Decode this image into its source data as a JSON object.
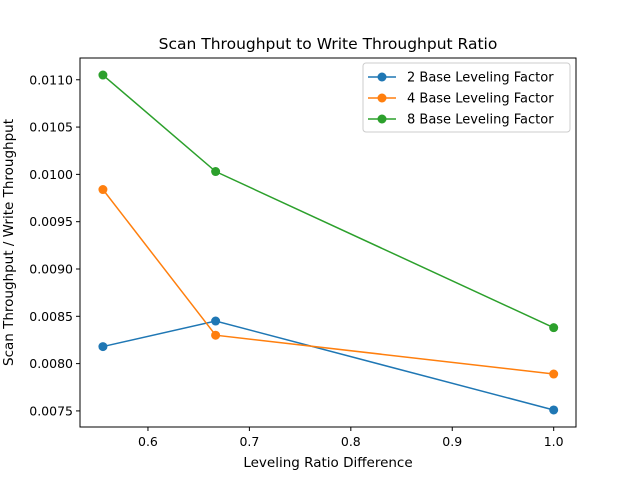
{
  "chart_data": {
    "type": "line",
    "title": "Scan Throughput to Write Throughput Ratio",
    "xlabel": "Leveling Ratio Difference",
    "ylabel": "Scan Throughput / Write Throughput",
    "xlim": [
      0.533,
      1.022
    ],
    "ylim": [
      0.00733,
      0.01123
    ],
    "xticks": [
      0.6,
      0.7,
      0.8,
      0.9,
      1.0
    ],
    "xtick_labels": [
      "0.6",
      "0.7",
      "0.8",
      "0.9",
      "1.0"
    ],
    "yticks": [
      0.0075,
      0.008,
      0.0085,
      0.009,
      0.0095,
      0.01,
      0.0105,
      0.011
    ],
    "ytick_labels": [
      "0.0075",
      "0.0080",
      "0.0085",
      "0.0090",
      "0.0095",
      "0.0100",
      "0.0105",
      "0.0110"
    ],
    "grid": false,
    "legend_position": "top-right",
    "x": [
      0.5556,
      0.6667,
      1.0
    ],
    "series": [
      {
        "name": "2 Base Leveling Factor",
        "color": "#1f77b4",
        "values": [
          0.00818,
          0.00845,
          0.00751
        ]
      },
      {
        "name": "4 Base Leveling Factor",
        "color": "#ff7f0e",
        "values": [
          0.00984,
          0.0083,
          0.00789
        ]
      },
      {
        "name": "8 Base Leveling Factor",
        "color": "#2ca02c",
        "values": [
          0.01105,
          0.01003,
          0.00838
        ]
      }
    ]
  }
}
